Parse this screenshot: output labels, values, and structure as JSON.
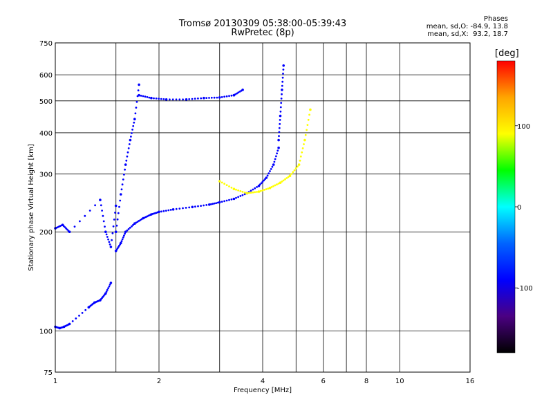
{
  "title": {
    "line1": "Tromsø 20130309 05:38:00-05:39:43",
    "line2": "RwPretec (8p)"
  },
  "phase_info": {
    "heading": "Phases",
    "o_mode": "mean, sd,O: -84.9, 13.8",
    "x_mode": "mean, sd,X:  93.2, 18.7"
  },
  "colorbar": {
    "unit": "[deg]",
    "ticks": [
      {
        "value": 100,
        "label": "100"
      },
      {
        "value": 0,
        "label": "0"
      },
      {
        "value": -100,
        "label": "-100"
      }
    ],
    "range": [
      -180,
      180
    ],
    "colors": [
      "#000000",
      "#4b0082",
      "#0000ff",
      "#0064ff",
      "#00ffff",
      "#00ff00",
      "#ffff00",
      "#ffa500",
      "#ff0000"
    ]
  },
  "chart_data": {
    "type": "scatter",
    "xlabel": "Frequency [MHz]",
    "ylabel": "Stationary phase Virtual Height [km]",
    "x_scale": "log",
    "y_scale": "log",
    "xlim": [
      1,
      16
    ],
    "ylim": [
      75,
      750
    ],
    "grid": true,
    "x_ticks": [
      {
        "value": 1,
        "label": "1"
      },
      {
        "value": 2,
        "label": "2"
      },
      {
        "value": 4,
        "label": "4"
      },
      {
        "value": 6,
        "label": "6"
      },
      {
        "value": 8,
        "label": "8"
      },
      {
        "value": 10,
        "label": "10"
      },
      {
        "value": 16,
        "label": "16"
      }
    ],
    "x_minor_grid": [
      1.5,
      3,
      5,
      7
    ],
    "y_ticks": [
      {
        "value": 75,
        "label": "75"
      },
      {
        "value": 100,
        "label": "100"
      },
      {
        "value": 200,
        "label": "200"
      },
      {
        "value": 300,
        "label": "300"
      },
      {
        "value": 400,
        "label": "400"
      },
      {
        "value": 500,
        "label": "500"
      },
      {
        "value": 600,
        "label": "600"
      },
      {
        "value": 750,
        "label": "750"
      }
    ],
    "series": [
      {
        "trace": "o-mode lower F trace",
        "phase": -95,
        "x": [
          1.5,
          1.55,
          1.6,
          1.7,
          1.8,
          1.9,
          2.0,
          2.2,
          2.5,
          2.8,
          3.0,
          3.3,
          3.6,
          3.9,
          4.1,
          4.3,
          4.45
        ],
        "y": [
          175,
          185,
          200,
          212,
          220,
          226,
          230,
          234,
          238,
          242,
          246,
          252,
          262,
          276,
          292,
          320,
          360
        ]
      },
      {
        "trace": "o-mode upper F trace",
        "phase": -95,
        "x": [
          4.45,
          4.5,
          4.55,
          4.6
        ],
        "y": [
          380,
          450,
          540,
          640
        ]
      },
      {
        "trace": "o-mode 500 km echo band",
        "phase": -100,
        "x": [
          1.75,
          1.9,
          2.1,
          2.4,
          2.7,
          3.0,
          3.3,
          3.5
        ],
        "y": [
          520,
          510,
          505,
          505,
          510,
          512,
          520,
          540
        ]
      },
      {
        "trace": "o-mode spread near 1.5-1.7 MHz",
        "phase": -90,
        "x": [
          1.5,
          1.55,
          1.6,
          1.65,
          1.7,
          1.75
        ],
        "y": [
          200,
          260,
          320,
          380,
          440,
          560
        ]
      },
      {
        "trace": "x-mode trace",
        "phase": 95,
        "x": [
          3.0,
          3.3,
          3.6,
          3.9,
          4.2,
          4.5,
          4.8,
          5.1,
          5.3,
          5.5
        ],
        "y": [
          285,
          270,
          262,
          265,
          272,
          282,
          296,
          320,
          380,
          470
        ]
      },
      {
        "trace": "E-region echoes",
        "phase": -100,
        "x": [
          1.0,
          1.03,
          1.06,
          1.1,
          1.25,
          1.3,
          1.35,
          1.4,
          1.45
        ],
        "y": [
          103,
          102,
          103,
          105,
          118,
          122,
          124,
          130,
          140
        ]
      },
      {
        "trace": "low-frequency echoes",
        "phase": -85,
        "x": [
          1.0,
          1.05,
          1.1,
          1.35,
          1.4,
          1.45,
          1.5
        ],
        "y": [
          205,
          210,
          200,
          250,
          200,
          180,
          240
        ]
      }
    ]
  }
}
